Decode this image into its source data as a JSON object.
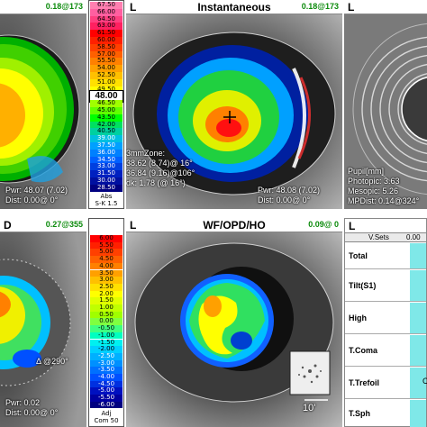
{
  "panels": {
    "axial": {
      "eye": "L",
      "reading": "0.18@173",
      "info_lines": [
        "Pwr: 48.07 (7.02)",
        "Dist: 0.00@ 0°"
      ]
    },
    "instantaneous": {
      "eye": "L",
      "title": "Instantaneous",
      "reading": "0.18@173",
      "zone_lines": [
        "3mmZone:",
        "38.62 (8.74)@ 16°",
        "36.84 (9.16)@106°",
        "dk: 1.78 (@ 16°)"
      ],
      "info_lines": [
        "Pwr: 48.08 (7.02)",
        "Dist: 0.00@ 0°"
      ]
    },
    "pupil": {
      "eye": "L",
      "info_lines": [
        "Pupil[mm]",
        "Photopic: 3.63",
        "Mesopic: 5.26",
        "MPDist: 0.14@324°"
      ]
    },
    "opd": {
      "eye": "D",
      "reading": "0.27@355",
      "info_lines": [
        "Δ @290°",
        "Pwr: 0.02",
        "Dist: 0.00@ 0°"
      ]
    },
    "wf": {
      "eye": "L",
      "title": "WF/OPD/HO",
      "reading": "0.09@ 0",
      "inset_label": "10'"
    },
    "vsets": {
      "eye": "L",
      "col_header": "V.Sets",
      "col_value": "0.00",
      "rows": [
        "Total",
        "Tilt(S1)",
        "High",
        "T.Coma",
        "T.Trefoil",
        "T.Sph"
      ],
      "trefoil_extra": "C"
    }
  },
  "scale_top": {
    "values": [
      "67.50",
      "66.00",
      "64.50",
      "63.00",
      "61.50",
      "60.00",
      "58.50",
      "57.00",
      "55.50",
      "54.00",
      "52.50",
      "51.00",
      "49.50",
      "48.00",
      "46.50",
      "45.00",
      "43.50",
      "42.00",
      "40.50",
      "39.00",
      "37.50",
      "36.00",
      "34.50",
      "33.00",
      "31.50",
      "30.00",
      "28.50"
    ],
    "current": "48.00",
    "foot": [
      "Abs",
      "S-K 1.5"
    ],
    "colors": [
      "#ff7fb0",
      "#ff5fa0",
      "#ff3f80",
      "#ff2060",
      "#ff0000",
      "#ff2000",
      "#ff4000",
      "#ff6000",
      "#ff8000",
      "#ffa000",
      "#ffc000",
      "#ffe000",
      "#ffff00",
      "#e0ff00",
      "#a0ff00",
      "#60ff00",
      "#00ff00",
      "#00e060",
      "#00d0a0",
      "#00c0e0",
      "#00a0ff",
      "#0080ff",
      "#0060ff",
      "#0040e0",
      "#0020c0",
      "#0010a0",
      "#000080"
    ]
  },
  "scale_bottom": {
    "values": [
      "6.00",
      "5.50",
      "5.00",
      "4.50",
      "4.00",
      "3.50",
      "3.00",
      "2.50",
      "2.00",
      "1.50",
      "1.00",
      "0.50",
      "0.00",
      "-0.50",
      "-1.00",
      "-1.50",
      "-2.00",
      "-2.50",
      "-3.00",
      "-3.50",
      "-4.00",
      "-4.50",
      "-5.00",
      "-5.50",
      "-6.00"
    ],
    "foot": [
      "Adj",
      "Com 50"
    ],
    "colors": [
      "#ff0000",
      "#ff2000",
      "#ff4000",
      "#ff6000",
      "#ff8000",
      "#ffa000",
      "#ffc000",
      "#ffe000",
      "#ffff00",
      "#e0ff00",
      "#c0ff00",
      "#a0ff00",
      "#80ff40",
      "#40ff80",
      "#00ffc0",
      "#00f0f0",
      "#00d0ff",
      "#00b0ff",
      "#0090ff",
      "#0070ff",
      "#0050ff",
      "#0030e0",
      "#0010c0",
      "#0000a0",
      "#000080"
    ]
  }
}
